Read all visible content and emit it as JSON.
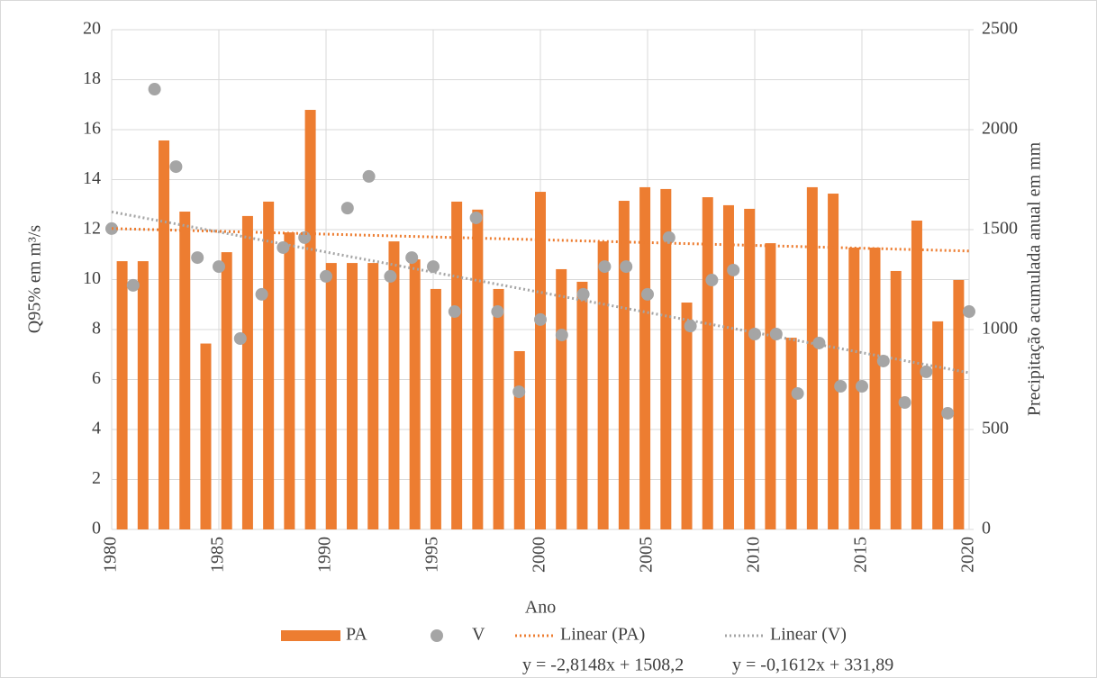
{
  "chart_data": {
    "type": "bar",
    "x_title": "Ano",
    "y_title": "Q95% em m³/s",
    "y2_title": "Precipitação acumulada anual em mm",
    "x": [
      1980,
      1981,
      1982,
      1983,
      1984,
      1985,
      1986,
      1987,
      1988,
      1989,
      1990,
      1991,
      1992,
      1993,
      1994,
      1995,
      1996,
      1997,
      1998,
      1999,
      2000,
      2001,
      2002,
      2003,
      2004,
      2005,
      2006,
      2007,
      2008,
      2009,
      2010,
      2011,
      2012,
      2013,
      2014,
      2015,
      2016,
      2017,
      2018,
      2019,
      2020
    ],
    "xlim": [
      1980,
      2020
    ],
    "xticks": [
      1980,
      1985,
      1990,
      1995,
      2000,
      2005,
      2010,
      2015,
      2020
    ],
    "ylim": [
      0,
      20
    ],
    "yticks": [
      0,
      2,
      4,
      6,
      8,
      10,
      12,
      14,
      16,
      18,
      20
    ],
    "y2lim": [
      0,
      2500
    ],
    "y2ticks": [
      0,
      500,
      1000,
      1500,
      2000,
      2500
    ],
    "grid": true,
    "legend": "bottom",
    "series": [
      {
        "name": "PA",
        "type": "bar",
        "axis": "y2",
        "color": "#ED7D31",
        "values": [
          1342,
          1342,
          1946,
          1590,
          930,
          1387,
          1568,
          1640,
          1486,
          2099,
          1333,
          1333,
          1333,
          1441,
          1351,
          1203,
          1640,
          1600,
          1203,
          892,
          1689,
          1302,
          1239,
          1441,
          1644,
          1712,
          1703,
          1135,
          1662,
          1622,
          1604,
          1432,
          959,
          1712,
          1680,
          1410,
          1410,
          1293,
          1545,
          1041,
          1248
        ]
      },
      {
        "name": "V",
        "type": "scatter",
        "color": "#A5A5A5",
        "values": [
          12.04,
          9.77,
          17.62,
          14.52,
          10.88,
          10.52,
          7.64,
          9.41,
          11.28,
          11.68,
          10.13,
          12.86,
          14.13,
          10.13,
          10.88,
          10.52,
          8.72,
          12.47,
          8.72,
          5.51,
          8.4,
          7.78,
          9.41,
          10.52,
          10.52,
          9.41,
          11.68,
          8.14,
          9.98,
          10.38,
          7.82,
          7.82,
          5.44,
          7.46,
          5.73,
          5.73,
          6.74,
          5.08,
          6.31,
          4.65,
          8.72
        ]
      },
      {
        "name": "Linear (PA)",
        "type": "line",
        "axis": "y2",
        "color": "#ED7D31",
        "x": [
          1980,
          2020
        ],
        "values": [
          1505.4,
          1392.8
        ],
        "equation": "y = -2,8148x + 1508,2"
      },
      {
        "name": "Linear (V)",
        "type": "line",
        "color": "#A5A5A5",
        "x": [
          1980,
          2020
        ],
        "values": [
          12.71,
          6.27
        ],
        "equation": "y = -0,1612x + 331,89"
      }
    ]
  }
}
